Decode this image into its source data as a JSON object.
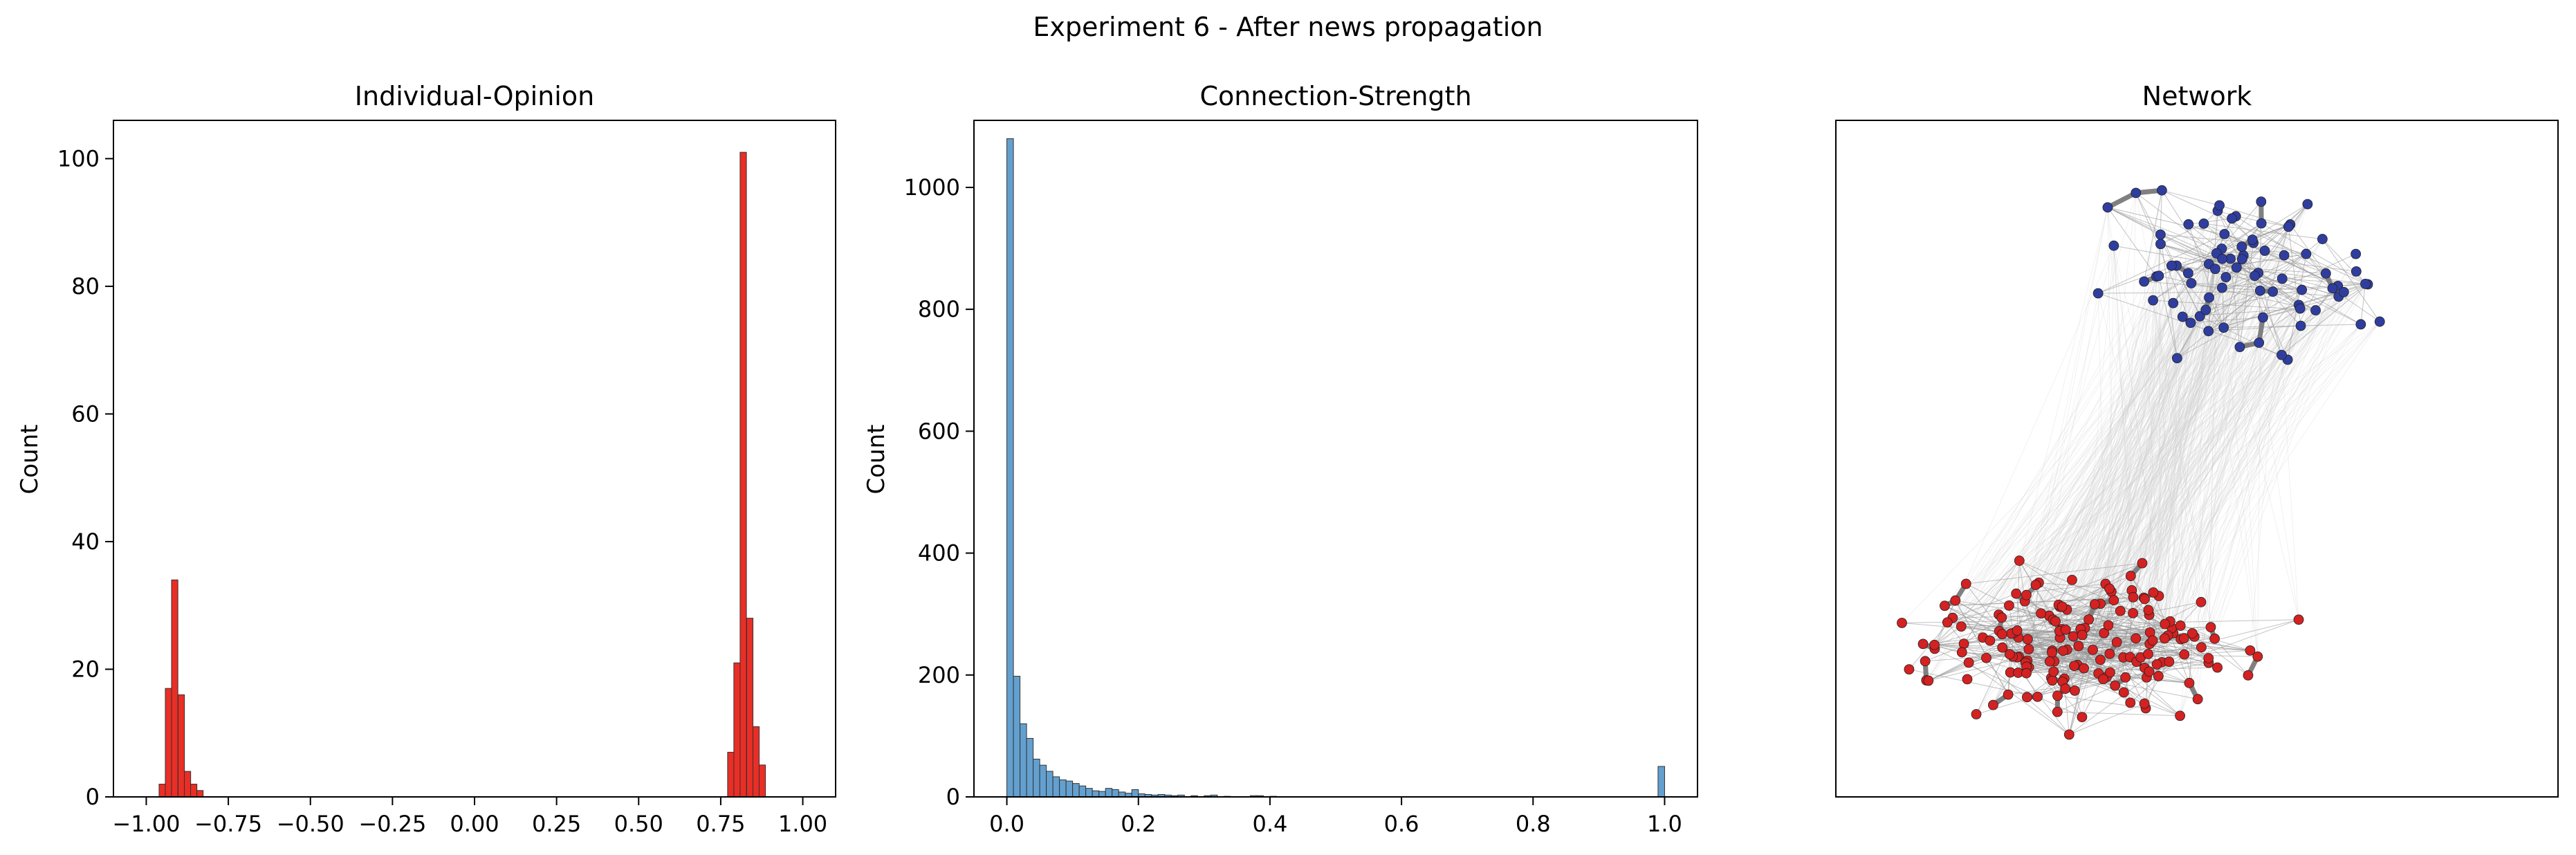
{
  "figure": {
    "suptitle": "Experiment 6 - After news propagation"
  },
  "chart_data": [
    {
      "type": "bar",
      "title": "Individual-Opinion",
      "xlabel": "",
      "ylabel": "Count",
      "xlim": [
        -1.1,
        1.1
      ],
      "ylim": [
        0,
        106
      ],
      "xticks": [
        "−1.00",
        "−0.75",
        "−0.50",
        "−0.25",
        "0.00",
        "0.25",
        "0.50",
        "0.75",
        "1.00"
      ],
      "yticks": [
        "0",
        "20",
        "40",
        "60",
        "80",
        "100"
      ],
      "bar_color": "#e8231a",
      "bin_width": 0.0193,
      "bins": [
        {
          "x": -0.961,
          "count": 2
        },
        {
          "x": -0.942,
          "count": 17
        },
        {
          "x": -0.923,
          "count": 34
        },
        {
          "x": -0.903,
          "count": 16
        },
        {
          "x": -0.884,
          "count": 4
        },
        {
          "x": -0.865,
          "count": 2
        },
        {
          "x": -0.846,
          "count": 1
        },
        {
          "x": 0.771,
          "count": 7
        },
        {
          "x": 0.79,
          "count": 21
        },
        {
          "x": 0.809,
          "count": 101
        },
        {
          "x": 0.829,
          "count": 28
        },
        {
          "x": 0.848,
          "count": 11
        },
        {
          "x": 0.867,
          "count": 5
        }
      ]
    },
    {
      "type": "bar",
      "title": "Connection-Strength",
      "xlabel": "",
      "ylabel": "Count",
      "xlim": [
        -0.05,
        1.05
      ],
      "ylim": [
        0,
        1110
      ],
      "xticks": [
        "0.0",
        "0.2",
        "0.4",
        "0.6",
        "0.8",
        "1.0"
      ],
      "yticks": [
        "0",
        "200",
        "400",
        "600",
        "800",
        "1000"
      ],
      "bar_color": "#5b9bcc",
      "bin_width": 0.01,
      "bins": [
        {
          "x": 0.0,
          "count": 1080
        },
        {
          "x": 0.01,
          "count": 198
        },
        {
          "x": 0.02,
          "count": 120
        },
        {
          "x": 0.03,
          "count": 96
        },
        {
          "x": 0.04,
          "count": 62
        },
        {
          "x": 0.05,
          "count": 52
        },
        {
          "x": 0.06,
          "count": 42
        },
        {
          "x": 0.07,
          "count": 33
        },
        {
          "x": 0.08,
          "count": 28
        },
        {
          "x": 0.09,
          "count": 26
        },
        {
          "x": 0.1,
          "count": 22
        },
        {
          "x": 0.11,
          "count": 18
        },
        {
          "x": 0.12,
          "count": 14
        },
        {
          "x": 0.13,
          "count": 10
        },
        {
          "x": 0.14,
          "count": 9
        },
        {
          "x": 0.15,
          "count": 14
        },
        {
          "x": 0.16,
          "count": 12
        },
        {
          "x": 0.17,
          "count": 8
        },
        {
          "x": 0.18,
          "count": 6
        },
        {
          "x": 0.19,
          "count": 12
        },
        {
          "x": 0.2,
          "count": 5
        },
        {
          "x": 0.21,
          "count": 4
        },
        {
          "x": 0.22,
          "count": 3
        },
        {
          "x": 0.23,
          "count": 4
        },
        {
          "x": 0.24,
          "count": 3
        },
        {
          "x": 0.25,
          "count": 2
        },
        {
          "x": 0.26,
          "count": 3
        },
        {
          "x": 0.28,
          "count": 2
        },
        {
          "x": 0.3,
          "count": 2
        },
        {
          "x": 0.31,
          "count": 3
        },
        {
          "x": 0.33,
          "count": 1
        },
        {
          "x": 0.37,
          "count": 2
        },
        {
          "x": 0.38,
          "count": 2
        },
        {
          "x": 0.4,
          "count": 1
        },
        {
          "x": 0.99,
          "count": 50
        }
      ]
    },
    {
      "type": "network",
      "title": "Network",
      "groups": [
        {
          "color": "#2f3e9e",
          "node_count": 80,
          "cluster": "upper-right"
        },
        {
          "color": "#d42121",
          "node_count": 170,
          "cluster": "lower-left"
        }
      ],
      "edge_color": "#808080",
      "axes_visible": false
    }
  ]
}
